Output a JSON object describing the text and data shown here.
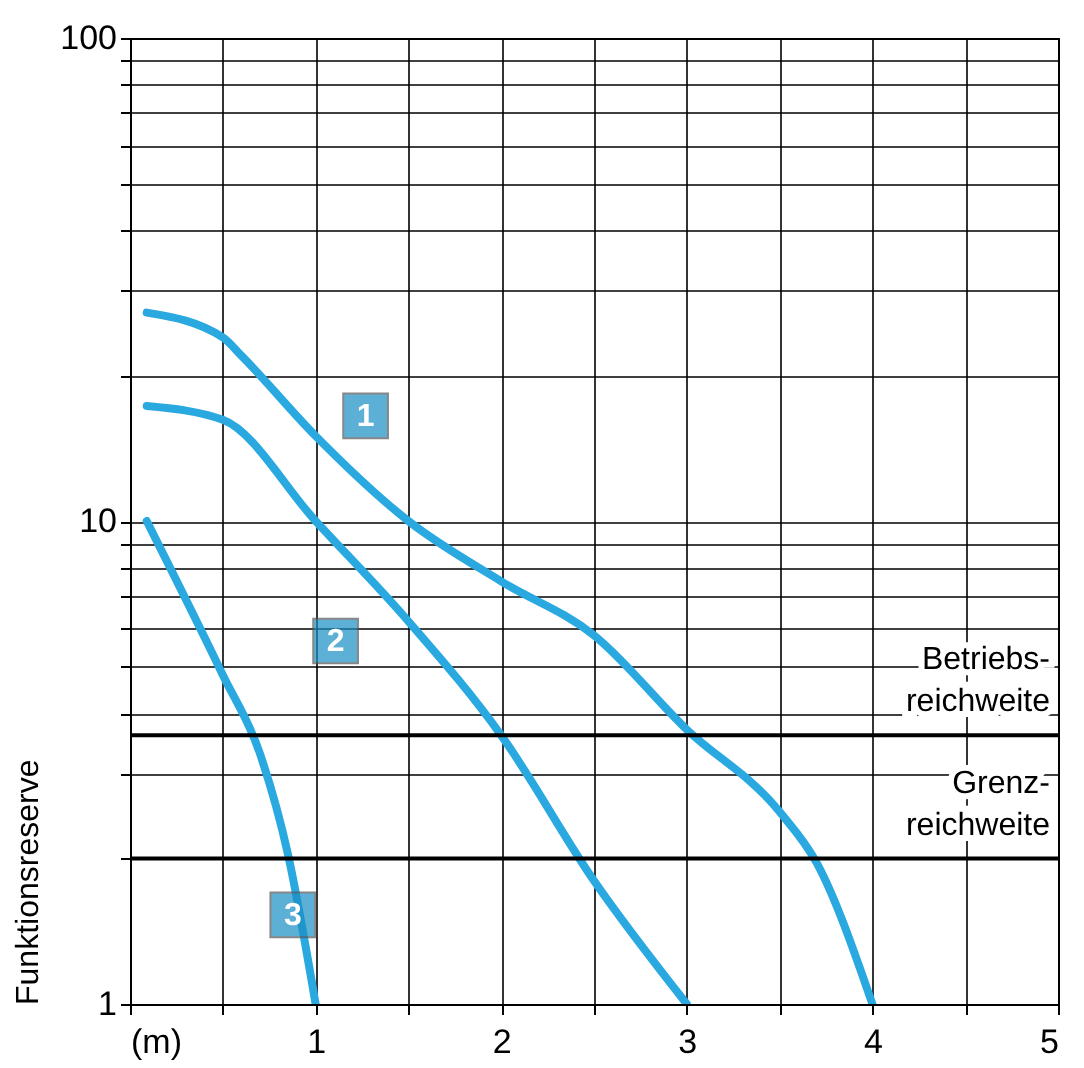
{
  "chart_data": {
    "type": "line",
    "ylabel": "Funktionsreserve",
    "log": "y",
    "grid": true,
    "legend": false,
    "marker": "none",
    "line_style": "solid",
    "xlim": [
      0,
      5
    ],
    "xticks": [
      {
        "value": 0,
        "label": "(m)"
      },
      {
        "value": 0.5,
        "label": null
      },
      1,
      {
        "value": 1.5,
        "label": null
      },
      2,
      {
        "value": 2.5,
        "label": null
      },
      3,
      {
        "value": 3.5,
        "label": null
      },
      4,
      {
        "value": 4.5,
        "label": null
      },
      5
    ],
    "ylim": [
      1,
      100
    ],
    "yticks": [
      1,
      {
        "value": 2,
        "label": null
      },
      {
        "value": 3,
        "label": null
      },
      {
        "value": 4,
        "label": null
      },
      {
        "value": 5,
        "label": null
      },
      {
        "value": 6,
        "label": null
      },
      {
        "value": 7,
        "label": null
      },
      {
        "value": 8,
        "label": null
      },
      {
        "value": 9,
        "label": null
      },
      10,
      {
        "value": 20,
        "label": null
      },
      {
        "value": 30,
        "label": null
      },
      {
        "value": 40,
        "label": null
      },
      {
        "value": 50,
        "label": null
      },
      {
        "value": 60,
        "label": null
      },
      {
        "value": 70,
        "label": null
      },
      {
        "value": 80,
        "label": null
      },
      {
        "value": 90,
        "label": null
      },
      100
    ],
    "series": [
      {
        "name": "1",
        "color": "#29a9e0",
        "x": [
          0.09,
          0.5,
          0.6,
          1.0,
          1.5,
          2.0,
          2.5,
          3.0,
          3.5,
          3.7,
          4.0
        ],
        "values": [
          27,
          24,
          22,
          15,
          10,
          7.5,
          5.8,
          3.7,
          2.5,
          1.96,
          1.0
        ]
      },
      {
        "name": "2",
        "color": "#29a9e0",
        "x": [
          0.09,
          0.5,
          1.0,
          1.5,
          2.0,
          2.5,
          3.0
        ],
        "values": [
          17.3,
          16.2,
          10,
          6.2,
          3.6,
          1.8,
          1.0
        ]
      },
      {
        "name": "3",
        "color": "#29a9e0",
        "x": [
          0.09,
          0.5,
          0.7,
          0.85,
          1.0
        ],
        "values": [
          10,
          4.8,
          3.3,
          2.05,
          1.0
        ]
      }
    ],
    "ref_lines": [
      {
        "axis": "y",
        "value": 3.6,
        "label": "Betriebs-\nreichweite",
        "color": "#000000"
      },
      {
        "axis": "y",
        "value": 2,
        "label": "Grenz-\nreichweite",
        "color": "#000000"
      }
    ]
  }
}
